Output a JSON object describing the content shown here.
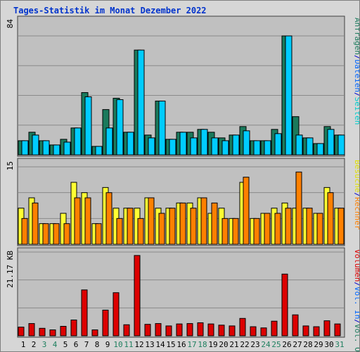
{
  "title": "Tages-Statistik im Monat Dezember 2022",
  "colors": {
    "panel_bg": "#c0c0c0",
    "grid": "#8a8a8a",
    "anfragen": "#1a7a5c",
    "dateien": "#00ccff",
    "seiten": "#00cccc",
    "besuche": "#ffff33",
    "rechner": "#ff8000",
    "volumen": "#dd0000",
    "title": "#0033cc",
    "weekday_label": "#000000",
    "weekend_label": "#208060"
  },
  "chart_data": [
    {
      "type": "bar",
      "panel": "top",
      "ylabel_max": "84",
      "ylim": [
        0,
        84
      ],
      "legend_right": [
        {
          "text": "Anfragen",
          "color": "#1a7a5c"
        },
        {
          "text": "/",
          "color": "#0000cc"
        },
        {
          "text": "Dateien",
          "color": "#0066ff"
        },
        {
          "text": "/",
          "color": "#0000cc"
        },
        {
          "text": "Seiten",
          "color": "#00cccc"
        }
      ],
      "categories": [
        "1",
        "2",
        "3",
        "4",
        "5",
        "6",
        "7",
        "8",
        "9",
        "10",
        "11",
        "12",
        "13",
        "14",
        "15",
        "16",
        "17",
        "18",
        "19",
        "20",
        "21",
        "22",
        "23",
        "24",
        "25",
        "26",
        "27",
        "28",
        "29",
        "30",
        "31"
      ],
      "series": [
        {
          "name": "Anfragen",
          "values": [
            10,
            16,
            10,
            7,
            11,
            19,
            44,
            6,
            32,
            40,
            16,
            74,
            14,
            38,
            11,
            16,
            16,
            18,
            16,
            12,
            14,
            20,
            10,
            10,
            18,
            84,
            27,
            12,
            8,
            20,
            14
          ]
        },
        {
          "name": "Dateien",
          "values": [
            10,
            14,
            10,
            7,
            9,
            19,
            41,
            6,
            19,
            39,
            16,
            74,
            12,
            38,
            11,
            16,
            12,
            18,
            12,
            10,
            14,
            17,
            10,
            10,
            15,
            84,
            14,
            12,
            8,
            18,
            14
          ]
        }
      ]
    },
    {
      "type": "bar",
      "panel": "middle",
      "ylabel_max": "15",
      "ylim": [
        0,
        15
      ],
      "legend_right": [
        {
          "text": "Besuche",
          "color": "#e0e000"
        },
        {
          "text": "/",
          "color": "#0000cc"
        },
        {
          "text": "Rechner",
          "color": "#ff8000"
        }
      ],
      "categories": [
        "1",
        "2",
        "3",
        "4",
        "5",
        "6",
        "7",
        "8",
        "9",
        "10",
        "11",
        "12",
        "13",
        "14",
        "15",
        "16",
        "17",
        "18",
        "19",
        "20",
        "21",
        "22",
        "23",
        "24",
        "25",
        "26",
        "27",
        "28",
        "29",
        "30",
        "31"
      ],
      "series": [
        {
          "name": "Besuche",
          "values": [
            7,
            9,
            4,
            4,
            6,
            12,
            10,
            4,
            11,
            7,
            7,
            7,
            9,
            7,
            7,
            8,
            8,
            9,
            6,
            7,
            5,
            12,
            5,
            6,
            7,
            8,
            7,
            7,
            6,
            11,
            7
          ]
        },
        {
          "name": "Rechner",
          "values": [
            5,
            8,
            4,
            4,
            4,
            9,
            9,
            4,
            10,
            5,
            7,
            5,
            9,
            6,
            7,
            8,
            7,
            9,
            8,
            5,
            5,
            13,
            5,
            6,
            6,
            7,
            14,
            7,
            6,
            10,
            7
          ]
        }
      ]
    },
    {
      "type": "bar",
      "panel": "bottom",
      "ylabel_max": "21.17 KB",
      "ylim": [
        0,
        21.17
      ],
      "legend_right": [
        {
          "text": "Volumen",
          "color": "#dd0000"
        },
        {
          "text": "/",
          "color": "#0000cc"
        },
        {
          "text": "Vol. In",
          "color": "#0066ff"
        },
        {
          "text": "/",
          "color": "#0000cc"
        },
        {
          "text": "Vol. Out",
          "color": "#1a7a5c"
        }
      ],
      "categories": [
        "1",
        "2",
        "3",
        "4",
        "5",
        "6",
        "7",
        "8",
        "9",
        "10",
        "11",
        "12",
        "13",
        "14",
        "15",
        "16",
        "17",
        "18",
        "19",
        "20",
        "21",
        "22",
        "23",
        "24",
        "25",
        "26",
        "27",
        "28",
        "29",
        "30",
        "31"
      ],
      "series": [
        {
          "name": "Volumen",
          "values": [
            2.2,
            3.1,
            1.9,
            1.5,
            2.4,
            4,
            11.6,
            1.5,
            6.5,
            10.9,
            2.8,
            20.3,
            2.9,
            3.1,
            2.5,
            3,
            3.1,
            3.3,
            3,
            2.7,
            2.5,
            4.4,
            2.3,
            2,
            3.7,
            15.6,
            5.3,
            2.5,
            2.3,
            3.8,
            3
          ]
        }
      ],
      "x_label_weekend": [
        false,
        false,
        true,
        true,
        false,
        false,
        false,
        false,
        false,
        true,
        true,
        false,
        false,
        false,
        false,
        false,
        true,
        true,
        false,
        false,
        false,
        false,
        false,
        true,
        true,
        false,
        false,
        false,
        false,
        false,
        true
      ]
    }
  ]
}
